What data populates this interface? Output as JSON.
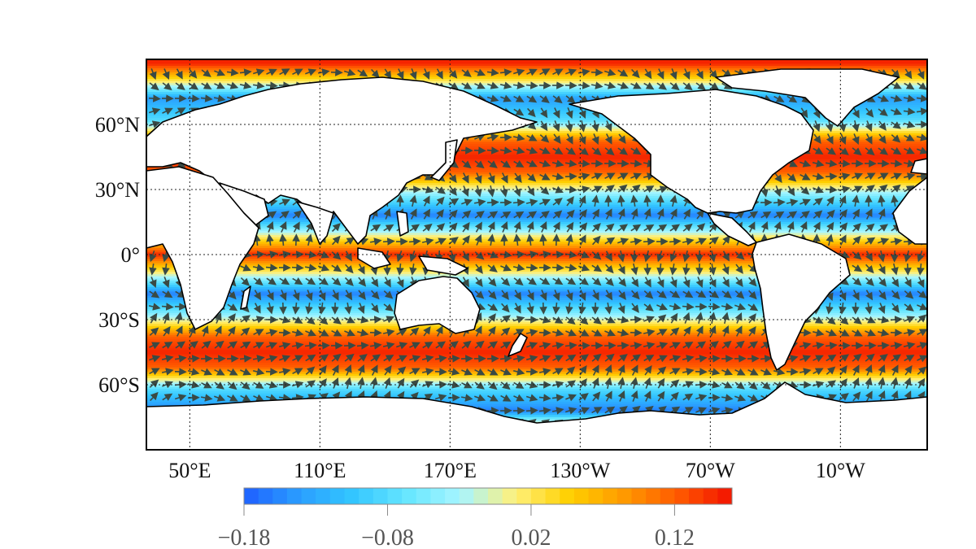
{
  "chart_data": {
    "type": "heatmap",
    "title": "",
    "projection": "equirectangular, central longitude 150°E",
    "lon_range": [
      30,
      390
    ],
    "lat_range": [
      -90,
      90
    ],
    "grid": true,
    "lat_ticks": [
      {
        "value": 60,
        "label": "60°N"
      },
      {
        "value": 30,
        "label": "30°N"
      },
      {
        "value": 0,
        "label": "0°"
      },
      {
        "value": -30,
        "label": "30°S"
      },
      {
        "value": -60,
        "label": "60°S"
      }
    ],
    "lon_ticks": [
      {
        "value": 50,
        "label": "50°E"
      },
      {
        "value": 110,
        "label": "110°E"
      },
      {
        "value": 170,
        "label": "170°E"
      },
      {
        "value": 230,
        "label": "130°W"
      },
      {
        "value": 290,
        "label": "70°W"
      },
      {
        "value": 350,
        "label": "10°W"
      }
    ],
    "field_zonal_profile": [
      {
        "lat": 88,
        "value": 0.15
      },
      {
        "lat": 80,
        "value": 0.02
      },
      {
        "lat": 72,
        "value": -0.14
      },
      {
        "lat": 62,
        "value": -0.08
      },
      {
        "lat": 52,
        "value": 0.12
      },
      {
        "lat": 45,
        "value": 0.15
      },
      {
        "lat": 38,
        "value": 0.12
      },
      {
        "lat": 28,
        "value": -0.04
      },
      {
        "lat": 18,
        "value": -0.16
      },
      {
        "lat": 10,
        "value": -0.02
      },
      {
        "lat": 0,
        "value": 0.15
      },
      {
        "lat": -10,
        "value": -0.02
      },
      {
        "lat": -18,
        "value": -0.16
      },
      {
        "lat": -28,
        "value": -0.04
      },
      {
        "lat": -38,
        "value": 0.12
      },
      {
        "lat": -45,
        "value": 0.15
      },
      {
        "lat": -52,
        "value": 0.12
      },
      {
        "lat": -62,
        "value": -0.08
      },
      {
        "lat": -72,
        "value": -0.16
      },
      {
        "lat": -80,
        "value": 0.05
      },
      {
        "lat": -90,
        "value": 0.1
      }
    ],
    "vector_field": "wind/current arrows overlaid on ocean, pointing roughly along bands",
    "colorbar": {
      "min": -0.18,
      "max": 0.16,
      "ticks": [
        {
          "value": -0.18,
          "label": "−0.18"
        },
        {
          "value": -0.08,
          "label": "−0.08"
        },
        {
          "value": 0.02,
          "label": "0.02"
        },
        {
          "value": 0.12,
          "label": "0.12"
        }
      ],
      "colors": [
        "#1f5fff",
        "#2a9dff",
        "#33c6ff",
        "#66e6ff",
        "#a8f5ff",
        "#fff07a",
        "#ffd000",
        "#ff9a00",
        "#ff5a00",
        "#f21100"
      ]
    },
    "land_color": "#ffffff",
    "coast_color": "#000000"
  }
}
